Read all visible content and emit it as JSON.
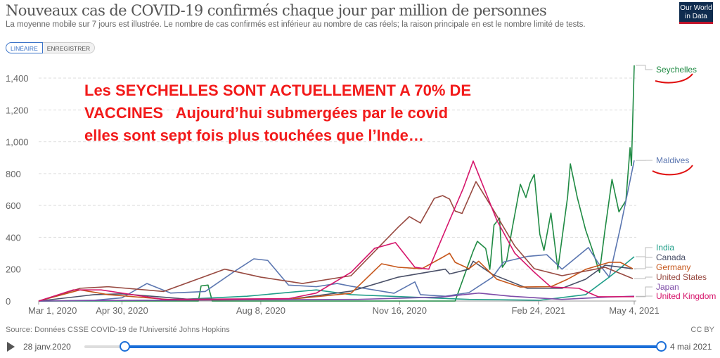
{
  "header": {
    "title": "Nouveaux cas de COVID-19 confirmés chaque jour par million de personnes",
    "subtitle": "La moyenne mobile sur 7 jours est illustrée. Le nombre de cas confirmés est inférieur au nombre de cas réels; la raison principale en est le nombre limité de tests.",
    "logo": "Our World in Data"
  },
  "toggle": {
    "linear": "LINÉAIRE",
    "log": "ENREGISTRER"
  },
  "annotation": "Les SEYCHELLES SONT ACTUELLEMENT A 70% DE\nVACCINES   Aujourd’hui submergées par le covid\nelles sont sept fois plus touchées que l’Inde…",
  "footer": {
    "source": "Source: Données CSSE COVID-19 de l'Université Johns Hopkins",
    "license": "CC BY"
  },
  "timeline": {
    "start": "28 janv.2020",
    "end": "4 mai 2021",
    "start_fraction": 0.07,
    "end_fraction": 1.0
  },
  "chart_data": {
    "type": "line",
    "title": "Nouveaux cas de COVID-19 confirmés chaque jour par million de personnes",
    "x_unit": "days since Mar 1, 2020",
    "xlim": [
      0,
      429
    ],
    "ylim": [
      0,
      1400
    ],
    "yticks": [
      0,
      200,
      400,
      600,
      800,
      1000,
      1200,
      1400
    ],
    "ytick_labels": [
      "0",
      "200",
      "400",
      "600",
      "800",
      "1,000",
      "1,200",
      "1,400"
    ],
    "xticks": [
      0,
      60,
      160,
      260,
      360,
      429
    ],
    "xtick_labels": [
      "Mar 1, 2020",
      "Apr 30, 2020",
      "Aug 8, 2020",
      "Nov 16, 2020",
      "Feb 24, 2021",
      "May 4, 2021"
    ],
    "grid": true,
    "series": [
      {
        "name": "Seychelles",
        "color": "#1f8a43",
        "points": [
          [
            0,
            0
          ],
          [
            115,
            0
          ],
          [
            117,
            95
          ],
          [
            122,
            100
          ],
          [
            125,
            0
          ],
          [
            300,
            0
          ],
          [
            313,
            314
          ],
          [
            316,
            375
          ],
          [
            322,
            330
          ],
          [
            325,
            199
          ],
          [
            328,
            477
          ],
          [
            332,
            520
          ],
          [
            334,
            212
          ],
          [
            337,
            250
          ],
          [
            341,
            450
          ],
          [
            347,
            733
          ],
          [
            351,
            650
          ],
          [
            354,
            742
          ],
          [
            357,
            795
          ],
          [
            361,
            420
          ],
          [
            364,
            318
          ],
          [
            369,
            552
          ],
          [
            374,
            200
          ],
          [
            381,
            653
          ],
          [
            383,
            861
          ],
          [
            388,
            650
          ],
          [
            394,
            446
          ],
          [
            399,
            318
          ],
          [
            404,
            180
          ],
          [
            408,
            450
          ],
          [
            413,
            764
          ],
          [
            418,
            560
          ],
          [
            423,
            630
          ],
          [
            426,
            963
          ],
          [
            427,
            850
          ],
          [
            429,
            1480
          ]
        ]
      },
      {
        "name": "Maldives",
        "color": "#5b76b0",
        "points": [
          [
            0,
            0
          ],
          [
            40,
            5
          ],
          [
            60,
            20
          ],
          [
            78,
            110
          ],
          [
            95,
            50
          ],
          [
            120,
            60
          ],
          [
            140,
            180
          ],
          [
            155,
            265
          ],
          [
            165,
            255
          ],
          [
            180,
            100
          ],
          [
            200,
            90
          ],
          [
            215,
            110
          ],
          [
            225,
            93
          ],
          [
            256,
            49
          ],
          [
            271,
            120
          ],
          [
            275,
            40
          ],
          [
            293,
            30
          ],
          [
            310,
            53
          ],
          [
            327,
            150
          ],
          [
            335,
            245
          ],
          [
            352,
            280
          ],
          [
            366,
            291
          ],
          [
            377,
            200
          ],
          [
            396,
            336
          ],
          [
            403,
            240
          ],
          [
            411,
            150
          ],
          [
            419,
            460
          ],
          [
            429,
            883
          ]
        ]
      },
      {
        "name": "India",
        "color": "#1f9e89",
        "points": [
          [
            0,
            0
          ],
          [
            90,
            5
          ],
          [
            150,
            30
          ],
          [
            200,
            70
          ],
          [
            225,
            40
          ],
          [
            310,
            10
          ],
          [
            361,
            5
          ],
          [
            394,
            40
          ],
          [
            411,
            150
          ],
          [
            429,
            278
          ]
        ]
      },
      {
        "name": "Canada",
        "color": "#4a5068",
        "points": [
          [
            0,
            0
          ],
          [
            40,
            40
          ],
          [
            60,
            45
          ],
          [
            110,
            10
          ],
          [
            180,
            10
          ],
          [
            225,
            62
          ],
          [
            259,
            150
          ],
          [
            293,
            200
          ],
          [
            296,
            170
          ],
          [
            310,
            200
          ],
          [
            313,
            250
          ],
          [
            327,
            167
          ],
          [
            352,
            80
          ],
          [
            377,
            80
          ],
          [
            394,
            137
          ],
          [
            408,
            225
          ],
          [
            428,
            203
          ]
        ]
      },
      {
        "name": "Germany",
        "color": "#c6561a",
        "points": [
          [
            0,
            0
          ],
          [
            30,
            70
          ],
          [
            50,
            40
          ],
          [
            100,
            5
          ],
          [
            180,
            10
          ],
          [
            225,
            49
          ],
          [
            247,
            234
          ],
          [
            259,
            212
          ],
          [
            276,
            203
          ],
          [
            290,
            270
          ],
          [
            296,
            300
          ],
          [
            300,
            243
          ],
          [
            310,
            203
          ],
          [
            317,
            250
          ],
          [
            330,
            137
          ],
          [
            347,
            88
          ],
          [
            369,
            90
          ],
          [
            381,
            137
          ],
          [
            394,
            199
          ],
          [
            411,
            243
          ],
          [
            419,
            243
          ],
          [
            428,
            203
          ]
        ]
      },
      {
        "name": "United States",
        "color": "#984a41",
        "points": [
          [
            0,
            0
          ],
          [
            30,
            80
          ],
          [
            50,
            90
          ],
          [
            90,
            60
          ],
          [
            134,
            200
          ],
          [
            160,
            150
          ],
          [
            190,
            110
          ],
          [
            225,
            159
          ],
          [
            259,
            464
          ],
          [
            267,
            530
          ],
          [
            275,
            490
          ],
          [
            285,
            645
          ],
          [
            291,
            662
          ],
          [
            296,
            640
          ],
          [
            300,
            565
          ],
          [
            305,
            550
          ],
          [
            315,
            750
          ],
          [
            327,
            580
          ],
          [
            343,
            345
          ],
          [
            357,
            203
          ],
          [
            377,
            159
          ],
          [
            408,
            212
          ],
          [
            428,
            141
          ]
        ]
      },
      {
        "name": "Japan",
        "color": "#7e4ca8",
        "points": [
          [
            0,
            0
          ],
          [
            40,
            3
          ],
          [
            150,
            8
          ],
          [
            230,
            10
          ],
          [
            290,
            25
          ],
          [
            317,
            50
          ],
          [
            340,
            30
          ],
          [
            377,
            10
          ],
          [
            410,
            25
          ],
          [
            429,
            30
          ]
        ]
      },
      {
        "name": "United Kingdom",
        "color": "#d6156b",
        "points": [
          [
            0,
            0
          ],
          [
            25,
            70
          ],
          [
            45,
            70
          ],
          [
            90,
            10
          ],
          [
            180,
            15
          ],
          [
            200,
            50
          ],
          [
            225,
            180
          ],
          [
            242,
            331
          ],
          [
            257,
            367
          ],
          [
            271,
            212
          ],
          [
            281,
            200
          ],
          [
            293,
            446
          ],
          [
            306,
            711
          ],
          [
            313,
            879
          ],
          [
            318,
            770
          ],
          [
            330,
            508
          ],
          [
            343,
            300
          ],
          [
            357,
            181
          ],
          [
            369,
            88
          ],
          [
            389,
            80
          ],
          [
            403,
            27
          ],
          [
            429,
            27
          ]
        ]
      }
    ]
  }
}
